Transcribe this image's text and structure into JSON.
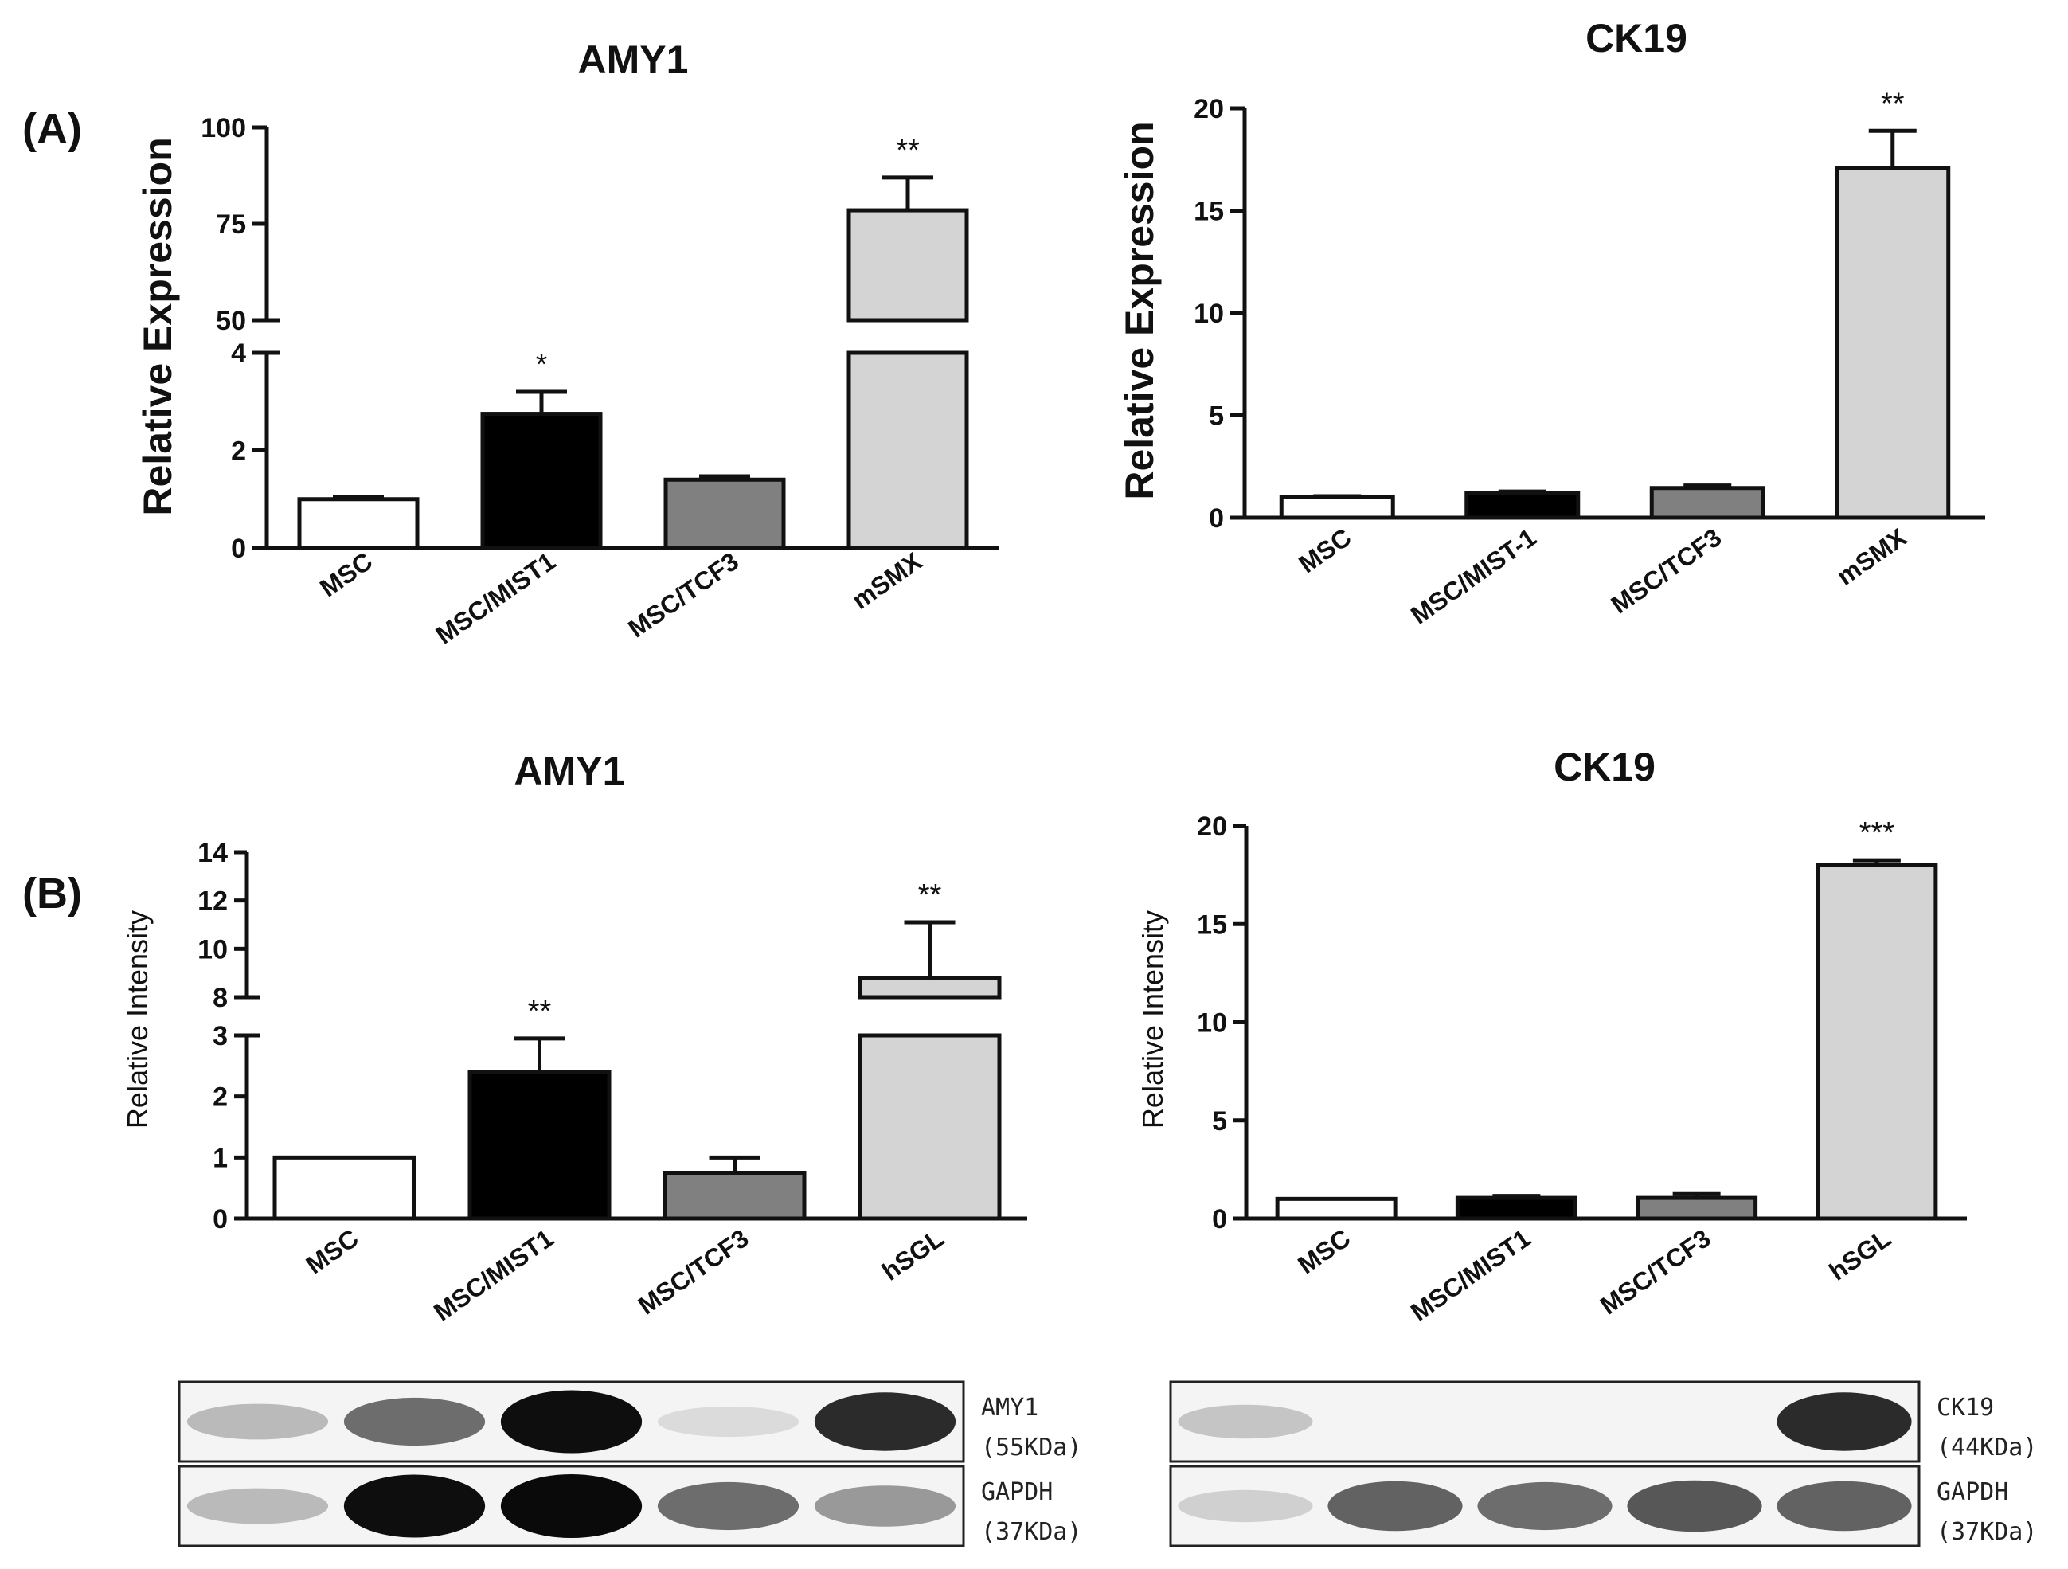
{
  "panel_labels": [
    "(A)",
    "(B)"
  ],
  "chart_data": [
    {
      "type": "bar",
      "panel": "(A)",
      "title": "AMY1",
      "ylabel": "Relative Expression",
      "xlabel": "",
      "categories": [
        "MSC",
        "MSC/MIST1",
        "MSC/TCF3",
        "mSMX"
      ],
      "values": [
        1.0,
        2.75,
        1.4,
        78.5
      ],
      "errors": [
        0.05,
        0.45,
        0.07,
        8.5
      ],
      "significance": [
        "",
        "*",
        "",
        "**"
      ],
      "bar_colors": [
        "#ffffff",
        "#000000",
        "#808080",
        "#d4d4d4"
      ],
      "axis_break": {
        "lower": [
          0,
          4
        ],
        "upper": [
          50,
          100
        ]
      },
      "yticks_lower": [
        0,
        2,
        4
      ],
      "yticks_upper": [
        50,
        75,
        100
      ],
      "grid": false
    },
    {
      "type": "bar",
      "panel": "(A)",
      "title": "CK19",
      "ylabel": "Relative Expression",
      "xlabel": "",
      "categories": [
        "MSC",
        "MSC/MIST-1",
        "MSC/TCF3",
        "mSMX"
      ],
      "values": [
        1.0,
        1.2,
        1.45,
        17.1
      ],
      "errors": [
        0.05,
        0.08,
        0.12,
        1.8
      ],
      "significance": [
        "",
        "",
        "",
        "**"
      ],
      "bar_colors": [
        "#ffffff",
        "#000000",
        "#808080",
        "#d4d4d4"
      ],
      "ylim": [
        0,
        20
      ],
      "yticks": [
        0,
        5,
        10,
        15,
        20
      ],
      "grid": false
    },
    {
      "type": "bar",
      "panel": "(B)",
      "title": "AMY1",
      "ylabel": "Relative Intensity",
      "xlabel": "",
      "categories": [
        "MSC",
        "MSC/MIST1",
        "MSC/TCF3",
        "hSGL"
      ],
      "values": [
        1.0,
        2.4,
        0.75,
        8.8
      ],
      "errors": [
        0.0,
        0.55,
        0.25,
        2.3
      ],
      "significance": [
        "",
        "**",
        "",
        "**"
      ],
      "bar_colors": [
        "#ffffff",
        "#000000",
        "#808080",
        "#d4d4d4"
      ],
      "axis_break": {
        "lower": [
          0,
          3
        ],
        "upper": [
          8,
          14
        ]
      },
      "yticks_lower": [
        0,
        1,
        2,
        3
      ],
      "yticks_upper": [
        8,
        10,
        12,
        14
      ],
      "blot": {
        "bands": [
          {
            "label": "AMY1",
            "size": "(55KDa)",
            "intensities": [
              0.2,
              0.55,
              0.98,
              0.05,
              0.85
            ]
          },
          {
            "label": "GAPDH",
            "size": "(37KDa)",
            "intensities": [
              0.2,
              0.98,
              1.0,
              0.55,
              0.35
            ]
          }
        ]
      },
      "grid": false
    },
    {
      "type": "bar",
      "panel": "(B)",
      "title": "CK19",
      "ylabel": "Relative Intensity",
      "xlabel": "",
      "categories": [
        "MSC",
        "MSC/MIST1",
        "MSC/TCF3",
        "hSGL"
      ],
      "values": [
        1.0,
        1.05,
        1.05,
        18.0
      ],
      "errors": [
        0.0,
        0.1,
        0.2,
        0.25
      ],
      "significance": [
        "",
        "",
        "",
        "***"
      ],
      "bar_colors": [
        "#ffffff",
        "#000000",
        "#808080",
        "#d4d4d4"
      ],
      "ylim": [
        0,
        20
      ],
      "yticks": [
        0,
        5,
        10,
        15,
        20
      ],
      "blot": {
        "bands": [
          {
            "label": "CK19",
            "size": "(44KDa)",
            "intensities": [
              0.15,
              0.0,
              0.0,
              0.0,
              0.85
            ]
          },
          {
            "label": "GAPDH",
            "size": "(37KDa)",
            "intensities": [
              0.1,
              0.6,
              0.55,
              0.65,
              0.6
            ]
          }
        ]
      },
      "grid": false
    }
  ]
}
